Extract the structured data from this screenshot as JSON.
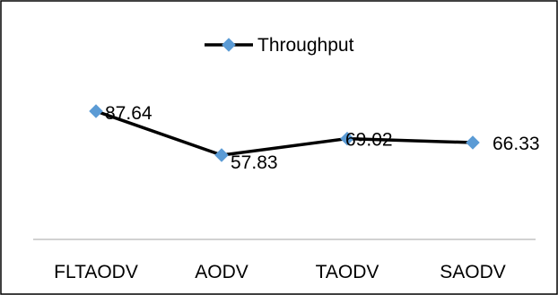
{
  "chart_data": {
    "type": "line",
    "categories": [
      "FLTAODV",
      "AODV",
      "TAODV",
      "SAODV"
    ],
    "series": [
      {
        "name": "Throughput",
        "values": [
          87.64,
          57.83,
          69.02,
          66.33
        ],
        "data_labels": [
          "87.64",
          "57.83",
          "69.02",
          "66.33"
        ]
      }
    ],
    "title": "",
    "xlabel": "",
    "ylabel": "",
    "legend": "top-center",
    "grid": false,
    "y_axis_visible": false
  },
  "colors": {
    "line": "#000000",
    "marker": "#5b9bd5",
    "axis": "#a6a6a6",
    "border": "#000000"
  }
}
